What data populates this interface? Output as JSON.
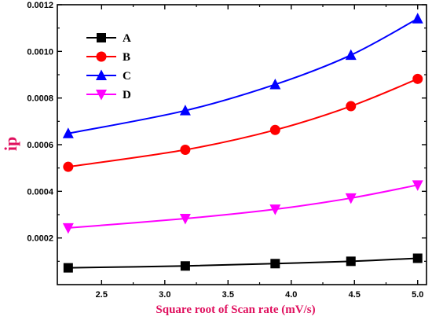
{
  "chart_data": {
    "type": "line",
    "xlabel": "Square root of Scan rate (mV/s)",
    "ylabel": "ip",
    "x": [
      2.236,
      3.162,
      3.873,
      4.472,
      5.0
    ],
    "xlim": [
      2.15,
      5.07
    ],
    "ylim": [
      0.0,
      0.0012
    ],
    "xticks": [
      2.5,
      3.0,
      3.5,
      4.0,
      4.5,
      5.0
    ],
    "xtick_labels": [
      "2.5",
      "3.0",
      "3.5",
      "4.0",
      "4.5",
      "5.0"
    ],
    "yticks": [
      0.0002,
      0.0004,
      0.0006,
      0.0008,
      0.001,
      0.0012
    ],
    "ytick_labels": [
      "0.0002",
      "0.0004",
      "0.0006",
      "0.0008",
      "0.0010",
      "0.0012"
    ],
    "grid": false,
    "legend_position": "top-left",
    "series": [
      {
        "name": "A",
        "color": "#000000",
        "marker": "square",
        "values": [
          7.2e-05,
          8e-05,
          9e-05,
          0.0001,
          0.000113
        ]
      },
      {
        "name": "B",
        "color": "#ff0000",
        "marker": "circle",
        "values": [
          0.000505,
          0.000578,
          0.000663,
          0.000765,
          0.000882
        ]
      },
      {
        "name": "C",
        "color": "#0000ff",
        "marker": "triangle-up",
        "values": [
          0.000648,
          0.000746,
          0.000858,
          0.000984,
          0.00114
        ]
      },
      {
        "name": "D",
        "color": "#ff00ff",
        "marker": "triangle-down",
        "values": [
          0.000243,
          0.000283,
          0.000323,
          0.000371,
          0.000427
        ]
      }
    ]
  }
}
